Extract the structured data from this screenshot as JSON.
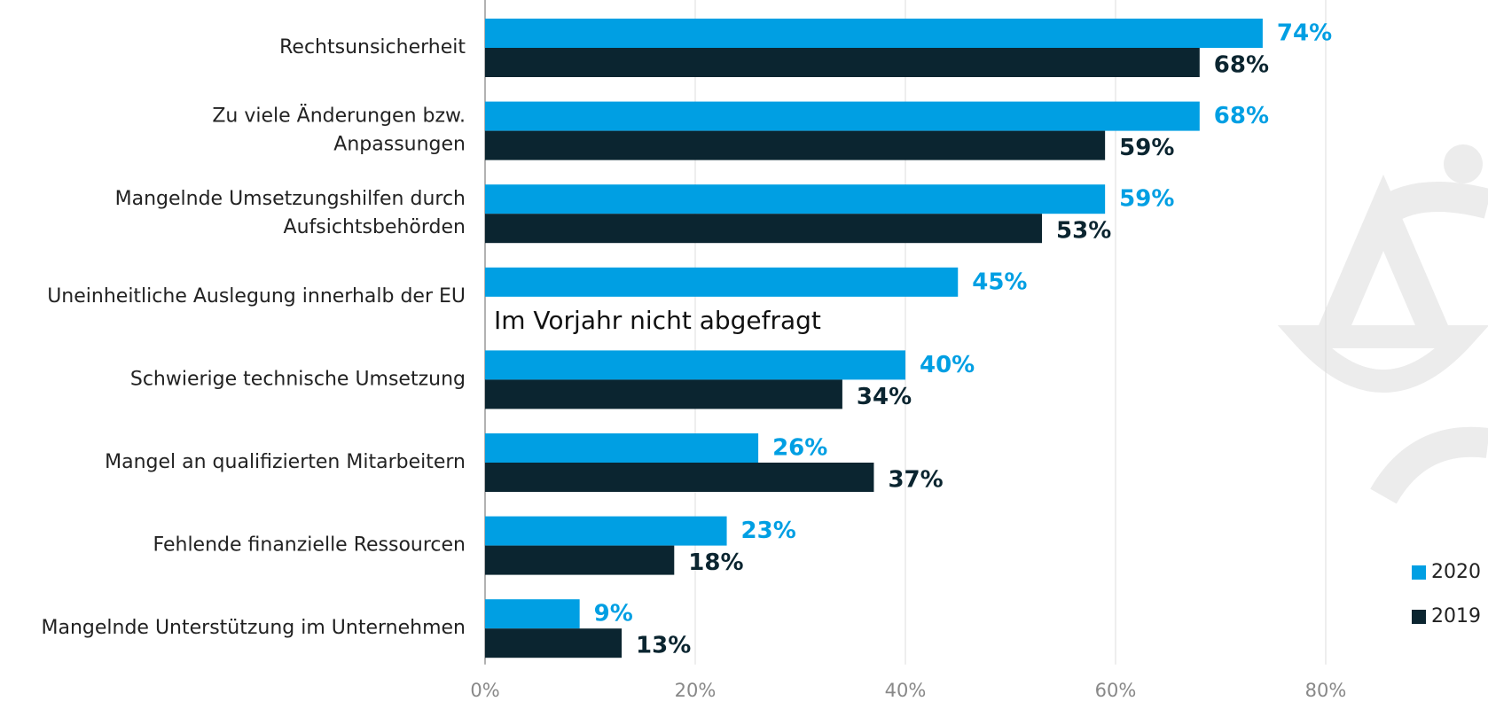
{
  "chart_data": {
    "type": "bar",
    "orientation": "horizontal",
    "categories": [
      "Rechtsunsicherheit",
      "Zu viele Änderungen bzw.\nAnpassungen",
      "Mangelnde Umsetzungshilfen durch\nAufsichtsbehörden",
      "Uneinheitliche Auslegung innerhalb der EU",
      "Schwierige technische Umsetzung",
      "Mangel an qualifizierten Mitarbeitern",
      "Fehlende finanzielle Ressourcen",
      "Mangelnde Unterstützung im Unternehmen"
    ],
    "series": [
      {
        "name": "2020",
        "color": "#009fe3",
        "values": [
          74,
          68,
          59,
          45,
          40,
          26,
          23,
          9
        ],
        "value_labels": [
          "74%",
          "68%",
          "59%",
          "45%",
          "40%",
          "26%",
          "23%",
          "9%"
        ]
      },
      {
        "name": "2019",
        "color": "#0b2530",
        "values": [
          68,
          59,
          53,
          null,
          34,
          37,
          18,
          13
        ],
        "value_labels": [
          "68%",
          "59%",
          "53%",
          null,
          "34%",
          "37%",
          "18%",
          "13%"
        ]
      }
    ],
    "annotations": [
      {
        "text": "Im Vorjahr nicht abgefragt",
        "category_index": 3
      }
    ],
    "xlim": [
      0,
      80
    ],
    "xticks": [
      {
        "value": 0,
        "label": "0%"
      },
      {
        "value": 20,
        "label": "20%"
      },
      {
        "value": 40,
        "label": "40%"
      },
      {
        "value": 60,
        "label": "60%"
      },
      {
        "value": 80,
        "label": "80%"
      }
    ],
    "grid": true,
    "legend": "lower right"
  }
}
